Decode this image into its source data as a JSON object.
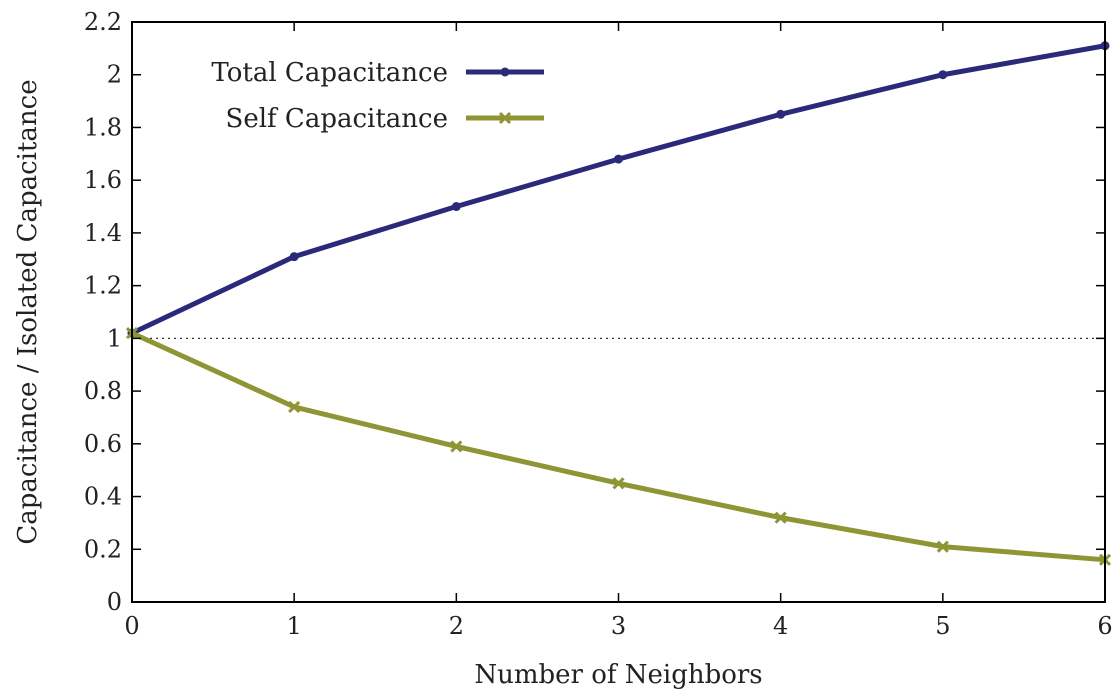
{
  "chart_data": {
    "type": "line",
    "title": "",
    "xlabel": "Number of Neighbors",
    "ylabel": "Capacitance / Isolated Capacitance",
    "xlim": [
      0,
      6
    ],
    "ylim": [
      0,
      2.2
    ],
    "xticks": [
      0,
      1,
      2,
      3,
      4,
      5,
      6
    ],
    "yticks": [
      0,
      0.2,
      0.4,
      0.6,
      0.8,
      1,
      1.2,
      1.4,
      1.6,
      1.8,
      2,
      2.2
    ],
    "xtick_labels": [
      "0",
      "1",
      "2",
      "3",
      "4",
      "5",
      "6"
    ],
    "ytick_labels": [
      "0",
      "0.2",
      "0.4",
      "0.6",
      "0.8",
      "1",
      "1.2",
      "1.4",
      "1.6",
      "1.8",
      "2",
      "2.2"
    ],
    "x": [
      0,
      1,
      2,
      3,
      4,
      5,
      6
    ],
    "reference_line": {
      "y": 1,
      "style": "dotted"
    },
    "legend_position": "top-left",
    "grid": false,
    "series": [
      {
        "name": "Total Capacitance",
        "color": "#2b2a7a",
        "marker": "dot",
        "values": [
          1.02,
          1.31,
          1.5,
          1.68,
          1.85,
          2.0,
          2.11
        ]
      },
      {
        "name": "Self Capacitance",
        "color": "#8f9535",
        "marker": "cross",
        "values": [
          1.02,
          0.74,
          0.59,
          0.45,
          0.32,
          0.21,
          0.16
        ]
      }
    ]
  }
}
